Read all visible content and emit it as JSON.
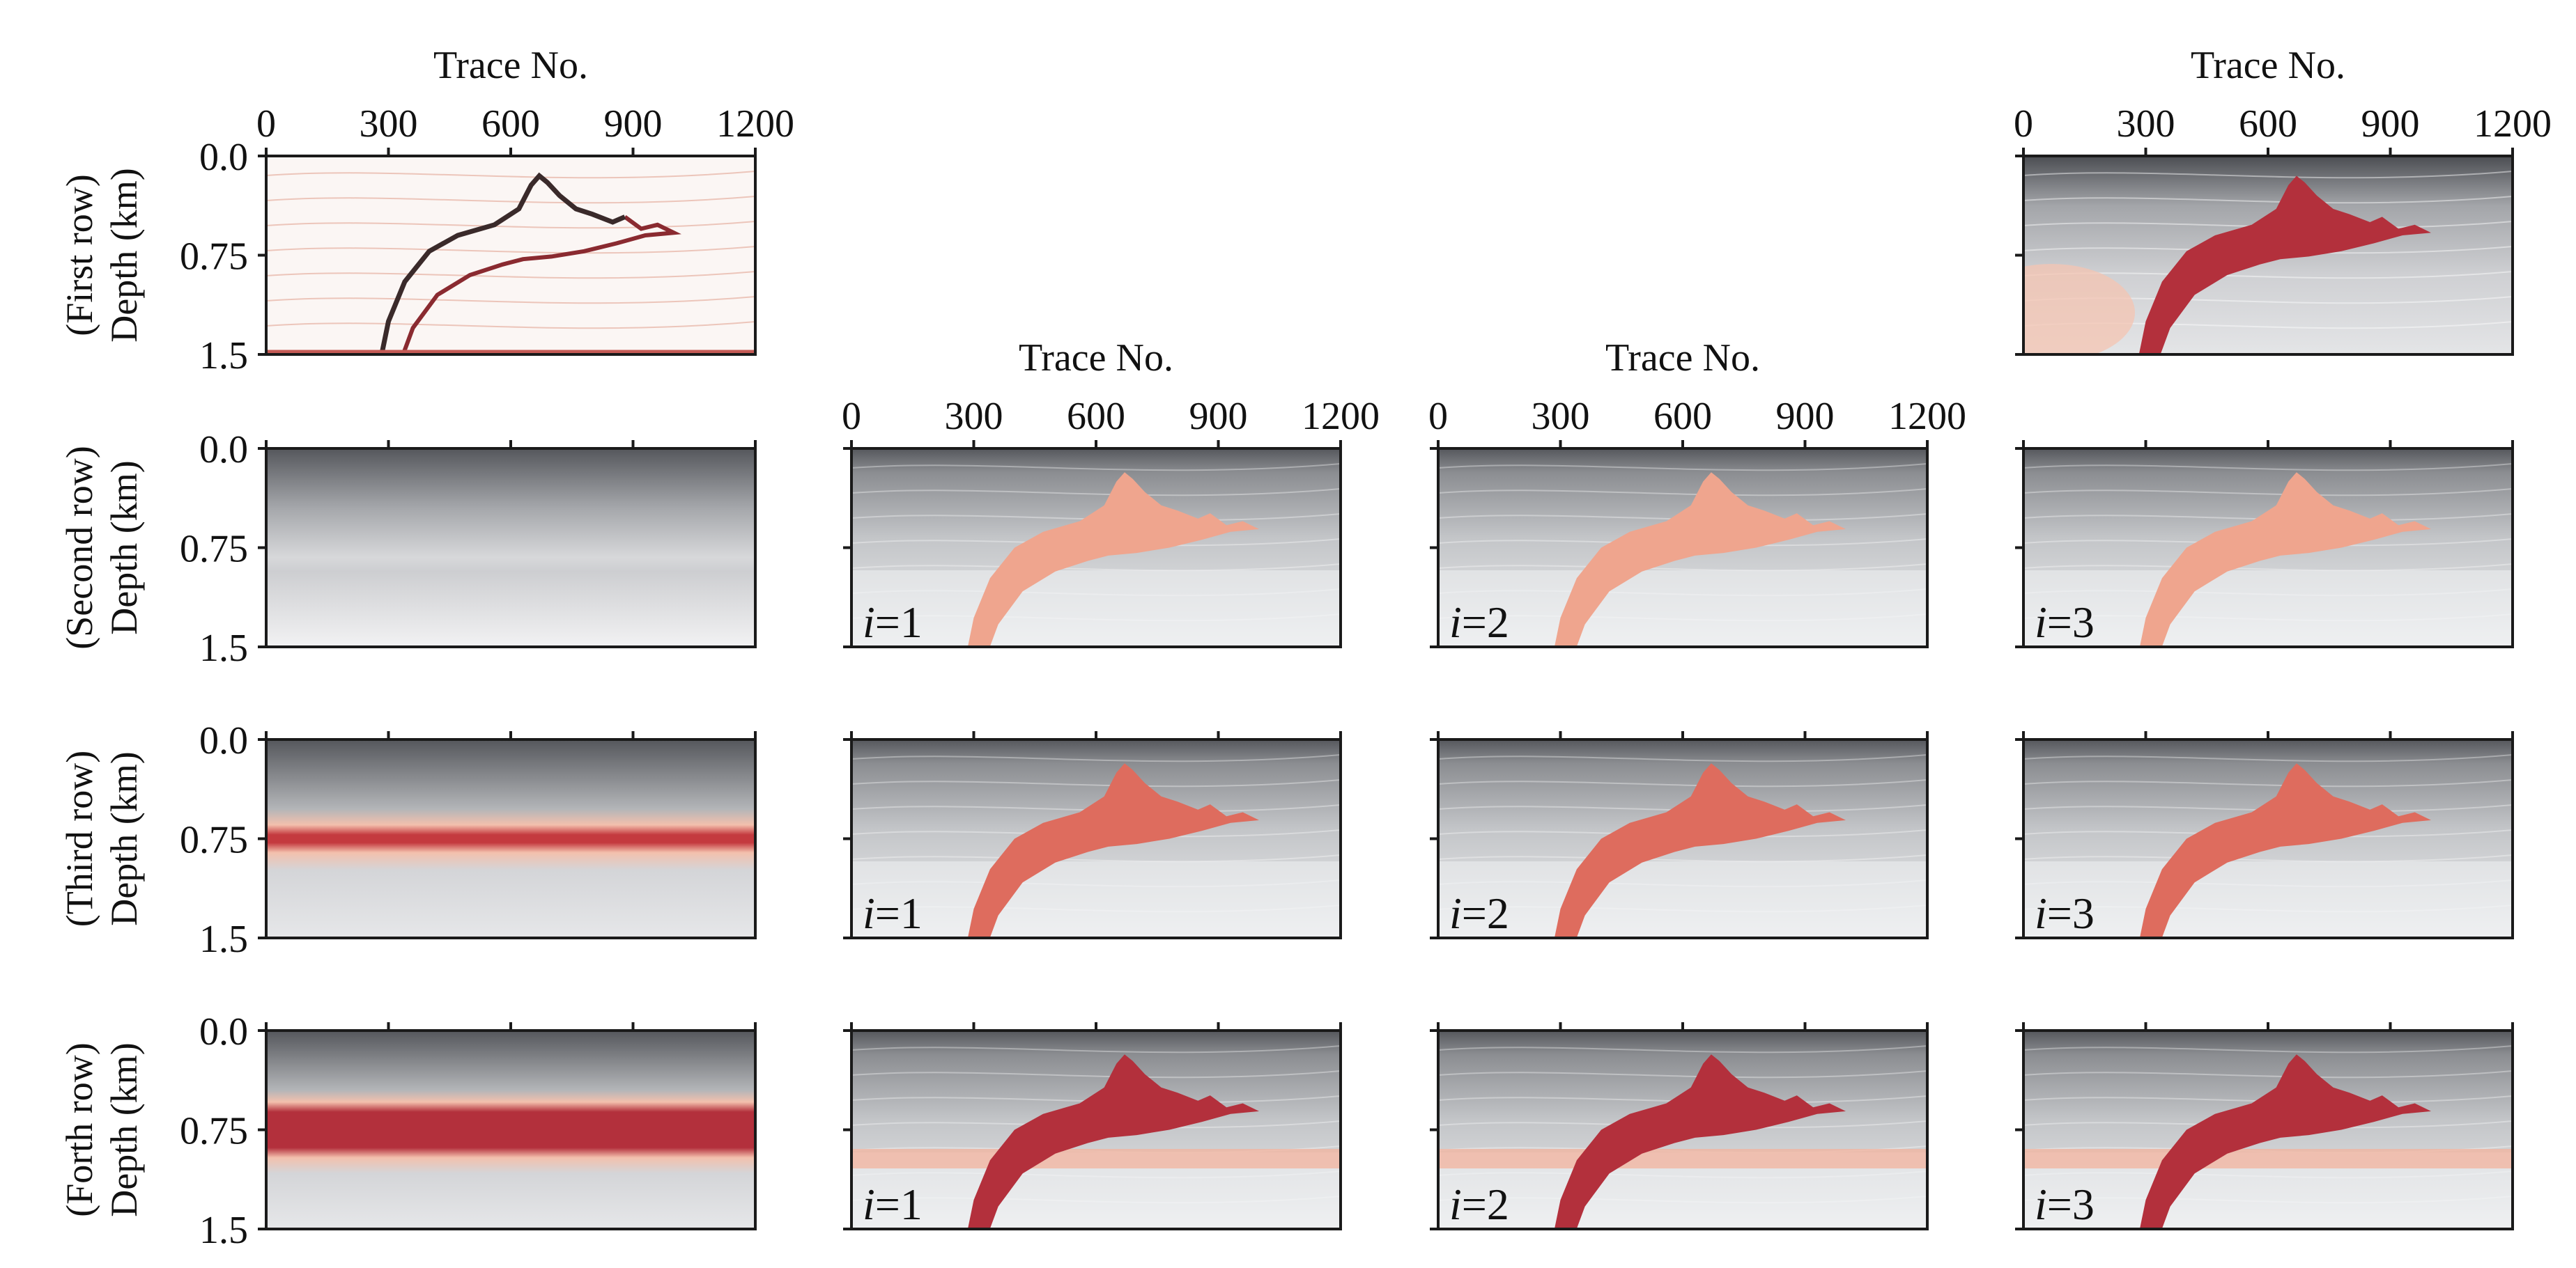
{
  "chart_data": {
    "type": "heatmap",
    "grid": {
      "rows": 4,
      "cols": 4
    },
    "x_axis": {
      "label": "Trace No.",
      "ticks": [
        0,
        300,
        600,
        900,
        1200
      ],
      "tick_labels": [
        "0",
        "300",
        "600",
        "900",
        "1200"
      ],
      "range": [
        0,
        1200
      ]
    },
    "y_axis": {
      "ticks": [
        0.0,
        0.75,
        1.5
      ],
      "tick_labels": [
        "0.0",
        "0.75",
        "1.5"
      ],
      "range": [
        0,
        1.5
      ]
    },
    "row_labels": [
      [
        "(First row)",
        "Depth (km)"
      ],
      [
        "(Second row)",
        "Depth (km)"
      ],
      [
        "(Third row)",
        "Depth (km)"
      ],
      [
        "(Forth row)",
        "Depth (km)"
      ]
    ],
    "iteration_labels": [
      {
        "var": "i",
        "text": "=1"
      },
      {
        "var": "i",
        "text": "=2"
      },
      {
        "var": "i",
        "text": "=3"
      }
    ],
    "panels": [
      {
        "row": 1,
        "col": 1,
        "kind": "reflectivity"
      },
      {
        "row": 1,
        "col": 4,
        "kind": "true_model"
      },
      {
        "row": 2,
        "col": 1,
        "kind": "initial",
        "band": 0
      },
      {
        "row": 2,
        "col": 2,
        "kind": "inverted",
        "iteration": 1,
        "strength": 0.35
      },
      {
        "row": 2,
        "col": 3,
        "kind": "inverted",
        "iteration": 2,
        "strength": 0.35
      },
      {
        "row": 2,
        "col": 4,
        "kind": "inverted",
        "iteration": 3,
        "strength": 0.35
      },
      {
        "row": 3,
        "col": 1,
        "kind": "initial",
        "band": 0.6
      },
      {
        "row": 3,
        "col": 2,
        "kind": "inverted",
        "iteration": 1,
        "strength": 0.65
      },
      {
        "row": 3,
        "col": 3,
        "kind": "inverted",
        "iteration": 2,
        "strength": 0.65
      },
      {
        "row": 3,
        "col": 4,
        "kind": "inverted",
        "iteration": 3,
        "strength": 0.65
      },
      {
        "row": 4,
        "col": 1,
        "kind": "initial",
        "band": 1
      },
      {
        "row": 4,
        "col": 2,
        "kind": "inverted",
        "iteration": 1,
        "strength": 0.95
      },
      {
        "row": 4,
        "col": 3,
        "kind": "inverted",
        "iteration": 2,
        "strength": 0.95
      },
      {
        "row": 4,
        "col": 4,
        "kind": "inverted",
        "iteration": 3,
        "strength": 0.9
      }
    ],
    "colors": {
      "salt": "#b3303c",
      "salt_light": "#efa58e",
      "gray_dark": "#4b4d52",
      "gray_light": "#e6e7e9",
      "reflect_bg": "#fbf6f4"
    }
  }
}
